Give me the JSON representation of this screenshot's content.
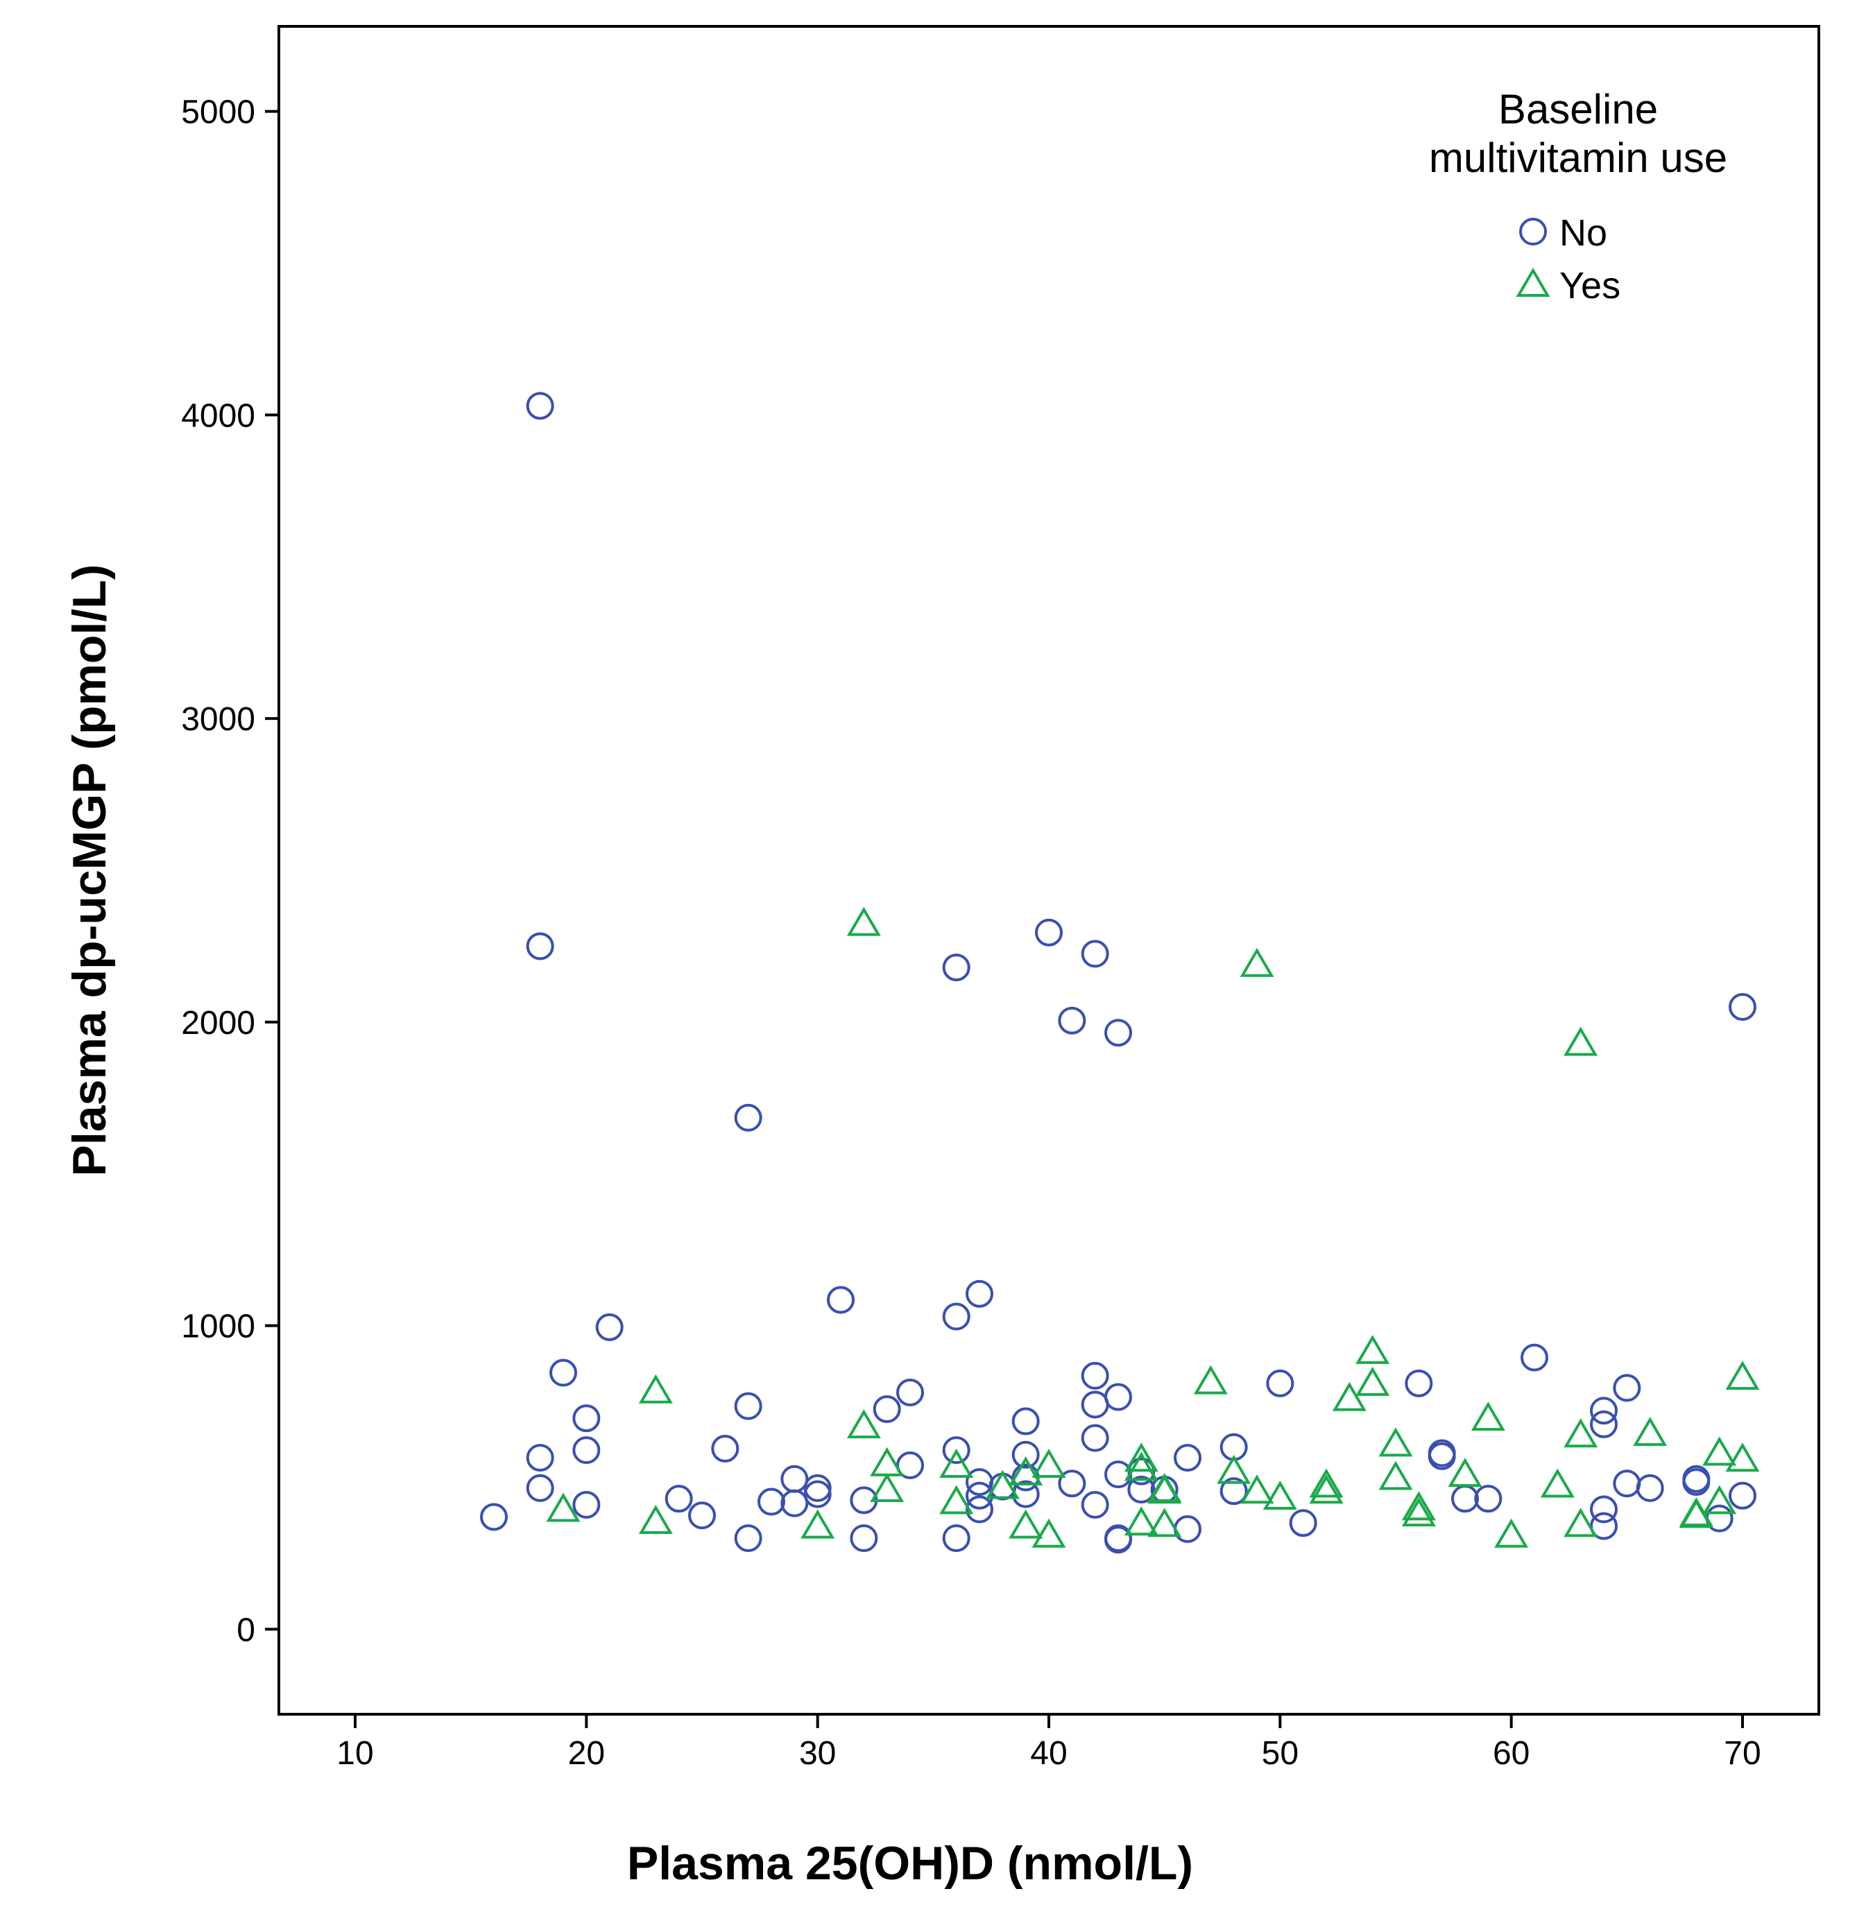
{
  "chart_data": {
    "type": "scatter",
    "title": "",
    "xlabel": "Plasma 25(OH)D (nmol/L)",
    "ylabel": "Plasma dp-ucMGP (pmol/L)",
    "xlim": [
      6.7,
      73.3
    ],
    "ylim": [
      -280,
      5280
    ],
    "xticks": [
      10,
      20,
      30,
      40,
      50,
      60,
      70
    ],
    "yticks": [
      0,
      1000,
      2000,
      3000,
      4000,
      5000
    ],
    "grid": false,
    "legend": {
      "title_line1": "Baseline",
      "title_line2": "multivitamin use",
      "placement": "top-right"
    },
    "series": [
      {
        "name": "No",
        "marker": "circle",
        "color": "#3a4fb0",
        "points": [
          [
            16,
            370
          ],
          [
            18,
            4030
          ],
          [
            18,
            2250
          ],
          [
            18,
            565
          ],
          [
            18,
            465
          ],
          [
            19,
            845
          ],
          [
            20,
            695
          ],
          [
            20,
            590
          ],
          [
            20,
            410
          ],
          [
            21,
            995
          ],
          [
            24,
            430
          ],
          [
            25,
            375
          ],
          [
            26,
            595
          ],
          [
            27,
            1685
          ],
          [
            27,
            735
          ],
          [
            27,
            300
          ],
          [
            28,
            420
          ],
          [
            29,
            495
          ],
          [
            29,
            415
          ],
          [
            30,
            465
          ],
          [
            30,
            445
          ],
          [
            31,
            1085
          ],
          [
            32,
            425
          ],
          [
            32,
            300
          ],
          [
            33,
            725
          ],
          [
            34,
            780
          ],
          [
            34,
            540
          ],
          [
            36,
            2180
          ],
          [
            36,
            1030
          ],
          [
            36,
            590
          ],
          [
            36,
            300
          ],
          [
            37,
            1105
          ],
          [
            37,
            485
          ],
          [
            37,
            440
          ],
          [
            37,
            395
          ],
          [
            38,
            470
          ],
          [
            39,
            685
          ],
          [
            39,
            575
          ],
          [
            39,
            500
          ],
          [
            39,
            445
          ],
          [
            40,
            2295
          ],
          [
            41,
            2005
          ],
          [
            41,
            480
          ],
          [
            42,
            2225
          ],
          [
            42,
            835
          ],
          [
            42,
            740
          ],
          [
            42,
            630
          ],
          [
            42,
            410
          ],
          [
            43,
            1965
          ],
          [
            43,
            765
          ],
          [
            43,
            510
          ],
          [
            43,
            300
          ],
          [
            43,
            295
          ],
          [
            44,
            520
          ],
          [
            44,
            460
          ],
          [
            45,
            460
          ],
          [
            46,
            565
          ],
          [
            46,
            330
          ],
          [
            48,
            600
          ],
          [
            48,
            455
          ],
          [
            50,
            810
          ],
          [
            51,
            350
          ],
          [
            56,
            810
          ],
          [
            57,
            580
          ],
          [
            57,
            570
          ],
          [
            58,
            430
          ],
          [
            59,
            430
          ],
          [
            61,
            895
          ],
          [
            64,
            720
          ],
          [
            64,
            675
          ],
          [
            64,
            395
          ],
          [
            64,
            340
          ],
          [
            65,
            795
          ],
          [
            65,
            480
          ],
          [
            66,
            465
          ],
          [
            68,
            495
          ],
          [
            68,
            485
          ],
          [
            69,
            365
          ],
          [
            70,
            2050
          ],
          [
            70,
            440
          ]
        ]
      },
      {
        "name": "Yes",
        "marker": "triangle",
        "color": "#1aaa4a",
        "points": [
          [
            19,
            395
          ],
          [
            23,
            785
          ],
          [
            23,
            355
          ],
          [
            30,
            340
          ],
          [
            32,
            2325
          ],
          [
            32,
            670
          ],
          [
            33,
            545
          ],
          [
            33,
            460
          ],
          [
            36,
            540
          ],
          [
            36,
            420
          ],
          [
            38,
            470
          ],
          [
            39,
            515
          ],
          [
            39,
            340
          ],
          [
            40,
            540
          ],
          [
            40,
            310
          ],
          [
            44,
            560
          ],
          [
            44,
            530
          ],
          [
            44,
            350
          ],
          [
            45,
            460
          ],
          [
            45,
            455
          ],
          [
            45,
            345
          ],
          [
            47,
            815
          ],
          [
            48,
            520
          ],
          [
            49,
            2190
          ],
          [
            49,
            455
          ],
          [
            50,
            435
          ],
          [
            52,
            475
          ],
          [
            52,
            455
          ],
          [
            53,
            760
          ],
          [
            54,
            915
          ],
          [
            54,
            810
          ],
          [
            55,
            610
          ],
          [
            55,
            500
          ],
          [
            56,
            400
          ],
          [
            56,
            380
          ],
          [
            58,
            510
          ],
          [
            59,
            695
          ],
          [
            60,
            310
          ],
          [
            62,
            475
          ],
          [
            63,
            1930
          ],
          [
            63,
            640
          ],
          [
            63,
            345
          ],
          [
            66,
            645
          ],
          [
            68,
            380
          ],
          [
            68,
            375
          ],
          [
            69,
            580
          ],
          [
            69,
            420
          ],
          [
            70,
            830
          ],
          [
            70,
            560
          ]
        ]
      }
    ]
  }
}
